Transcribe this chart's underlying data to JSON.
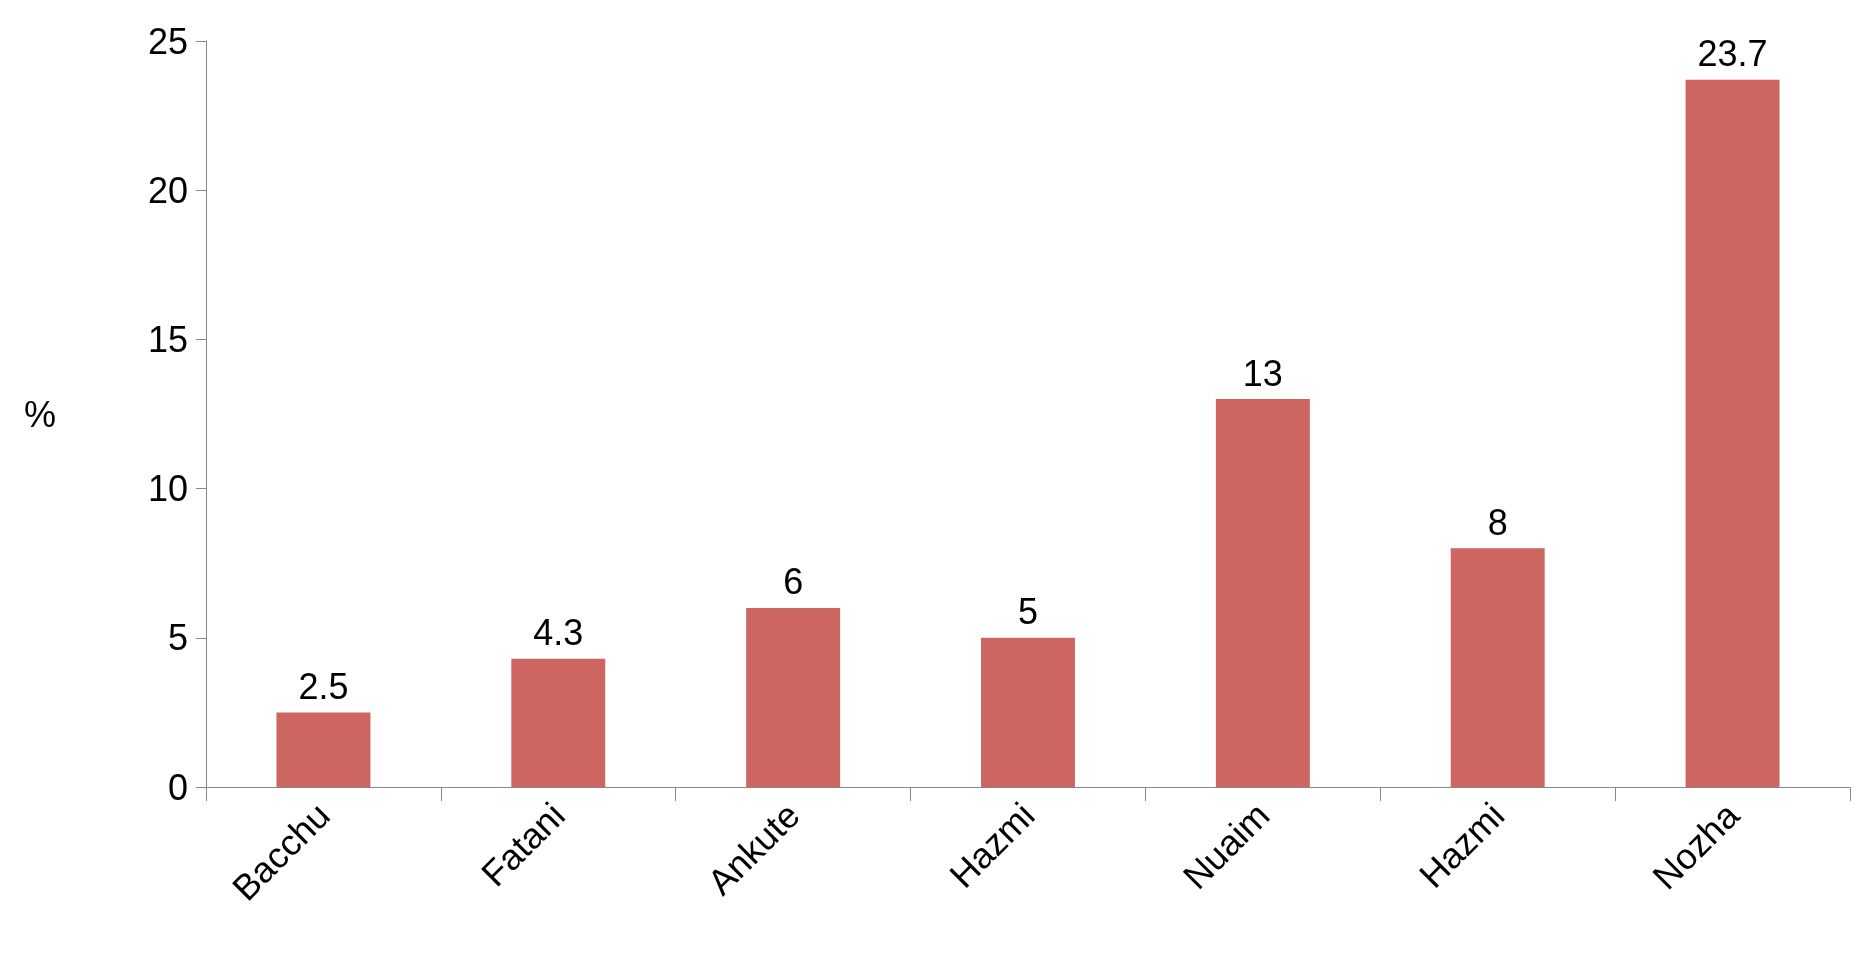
{
  "chart_data": {
    "type": "bar",
    "ylabel": "%",
    "categories": [
      "Bacchu",
      "Fatani",
      "Ankute",
      "Hazmi",
      "Nuaim",
      "Hazmi",
      "Nozha"
    ],
    "values": [
      2.5,
      4.3,
      6,
      5,
      13,
      8,
      23.7
    ],
    "color": "#cd6560",
    "ylim": [
      0,
      25
    ],
    "yticks": [
      0,
      5,
      10,
      15,
      20,
      25
    ],
    "grid": false,
    "data_labels": true
  }
}
